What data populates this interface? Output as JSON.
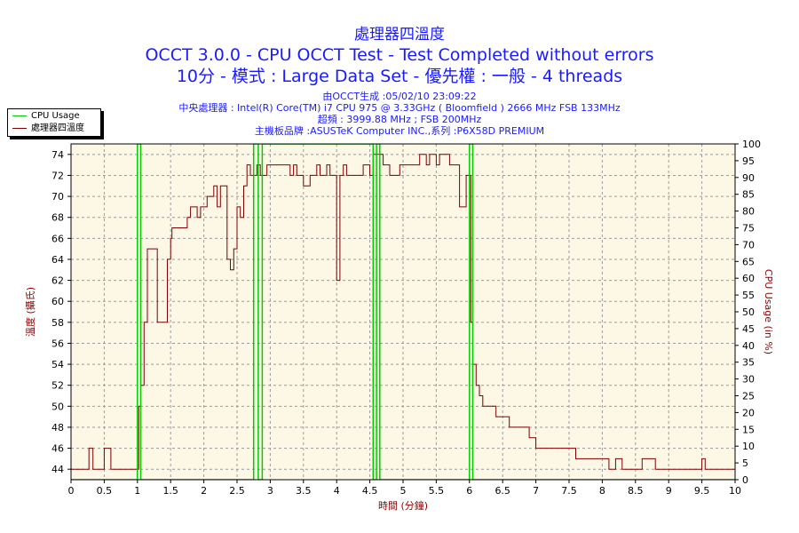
{
  "titles": {
    "line1": "處理器四溫度",
    "line2": "OCCT 3.0.0 - CPU OCCT Test - Test Completed without errors",
    "line3": "10分 - 模式 : Large Data Set - 優先權 : 一般 - 4 threads"
  },
  "subtitles": {
    "line1": "由OCCT生成 :05/02/10 23:09:22",
    "line2": "中央處理器 : Intel(R) Core(TM) i7 CPU 975 @ 3.33GHz ( Bloomfield ) 2666 MHz FSB 133MHz",
    "line3": "超頻 : 3999.88 MHz ; FSB 200MHz",
    "line4": "主機板品牌 :ASUSTeK Computer INC.,系列 :P6X58D PREMIUM"
  },
  "legend": {
    "cpu_usage": "CPU Usage",
    "temperature": "處理器四溫度"
  },
  "colors": {
    "plot_background": "#fdf7e6",
    "cpu_usage": "#00cc00",
    "temperature": "#7f0000",
    "title": "#1a1aff",
    "axis_label": "#8b0000",
    "grid": "#9a9a9a"
  },
  "chart_data": {
    "type": "line",
    "xlabel": "時間 (分鐘)",
    "ylabel_left": "溫度 (攝氏)",
    "ylabel_right": "CPU Usage (in %)",
    "xlim": [
      0,
      10
    ],
    "ylim_left": [
      43,
      75
    ],
    "ylim_right": [
      0,
      100
    ],
    "xticks": [
      0,
      0.5,
      1,
      1.5,
      2,
      2.5,
      3,
      3.5,
      4,
      4.5,
      5,
      5.5,
      6,
      6.5,
      7,
      7.5,
      8,
      8.5,
      9,
      9.5,
      10
    ],
    "yticks_left": [
      44,
      46,
      48,
      50,
      52,
      54,
      56,
      58,
      60,
      62,
      64,
      66,
      68,
      70,
      72,
      74
    ],
    "yticks_right": [
      0,
      5,
      10,
      15,
      20,
      25,
      30,
      35,
      40,
      45,
      50,
      55,
      60,
      65,
      70,
      75,
      80,
      85,
      90,
      95,
      100
    ],
    "grid": true,
    "legend_position": "top-left",
    "series": [
      {
        "name": "處理器四溫度",
        "axis": "left",
        "x": [
          0,
          0.25,
          0.27,
          0.33,
          0.35,
          0.5,
          0.52,
          0.6,
          0.62,
          1.0,
          1.02,
          1.05,
          1.1,
          1.15,
          1.18,
          1.3,
          1.33,
          1.45,
          1.5,
          1.52,
          1.6,
          1.75,
          1.8,
          1.9,
          1.95,
          2.05,
          2.1,
          2.15,
          2.2,
          2.25,
          2.3,
          2.35,
          2.4,
          2.45,
          2.5,
          2.55,
          2.6,
          2.65,
          2.7,
          2.75,
          2.8,
          2.85,
          2.95,
          3.0,
          3.1,
          3.3,
          3.35,
          3.4,
          3.45,
          3.5,
          3.6,
          3.7,
          3.75,
          3.85,
          3.9,
          3.95,
          4.0,
          4.02,
          4.05,
          4.1,
          4.15,
          4.2,
          4.3,
          4.4,
          4.5,
          4.52,
          4.55,
          4.6,
          4.7,
          4.8,
          4.9,
          4.95,
          5.05,
          5.2,
          5.25,
          5.35,
          5.4,
          5.5,
          5.55,
          5.65,
          5.7,
          5.8,
          5.85,
          5.9,
          5.95,
          6.0,
          6.02,
          6.05,
          6.1,
          6.15,
          6.2,
          6.3,
          6.4,
          6.6,
          6.7,
          6.9,
          7.0,
          7.3,
          7.6,
          8.05,
          8.1,
          8.2,
          8.3,
          8.6,
          8.8,
          9.25,
          9.5,
          9.55,
          9.6,
          10.0
        ],
        "y": [
          44,
          44,
          46,
          44,
          44,
          46,
          46,
          44,
          44,
          44,
          50,
          52,
          58,
          65,
          65,
          58,
          58,
          64,
          66,
          67,
          67,
          68,
          69,
          68,
          69,
          70,
          70,
          71,
          69,
          71,
          71,
          64,
          63,
          65,
          69,
          68,
          71,
          73,
          72,
          72,
          73,
          72,
          73,
          73,
          73,
          72,
          73,
          72,
          72,
          71,
          72,
          73,
          72,
          73,
          72,
          72,
          62,
          62,
          72,
          73,
          72,
          72,
          72,
          73,
          72,
          72,
          74,
          74,
          73,
          72,
          72,
          73,
          73,
          73,
          74,
          73,
          74,
          73,
          74,
          74,
          73,
          73,
          69,
          69,
          72,
          72,
          58,
          54,
          52,
          51,
          50,
          50,
          49,
          48,
          48,
          47,
          46,
          46,
          45,
          45,
          44,
          45,
          44,
          45,
          44,
          44,
          45,
          44,
          44,
          44
        ]
      },
      {
        "name": "CPU Usage",
        "axis": "right",
        "x": [
          0,
          1.0,
          1.0,
          1.05,
          1.05,
          2.75,
          2.75,
          2.82,
          2.82,
          2.88,
          2.88,
          4.55,
          4.55,
          4.6,
          4.6,
          4.65,
          4.65,
          6.0,
          6.0,
          6.05,
          6.05,
          10.0
        ],
        "y": [
          0,
          0,
          100,
          100,
          0,
          0,
          100,
          100,
          0,
          0,
          100,
          100,
          0,
          0,
          100,
          100,
          0,
          0,
          100,
          100,
          0,
          0
        ]
      }
    ]
  }
}
